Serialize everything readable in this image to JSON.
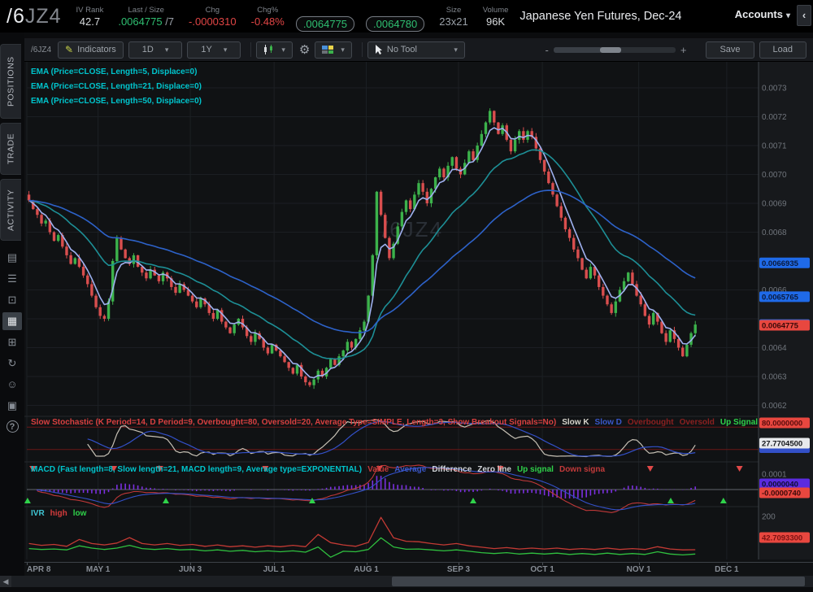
{
  "header": {
    "symbol_primary": "/6",
    "symbol_secondary": "JZ4",
    "iv_rank": {
      "label": "IV Rank",
      "value": "42.7"
    },
    "last_size": {
      "label": "Last / Size",
      "value": ".0064775",
      "size": " /7"
    },
    "chg": {
      "label": "Chg",
      "value": "-.0000310"
    },
    "chg_pct": {
      "label": "Chg%",
      "value": "-0.48%"
    },
    "bid": {
      "label": "Bid (Sell)",
      "value": ".0064775"
    },
    "ask": {
      "label": "Ask (Buy)",
      "value": ".0064780"
    },
    "size": {
      "label": "Size",
      "value": "23x21"
    },
    "volume": {
      "label": "Volume",
      "value": "96K"
    },
    "instrument": "Japanese Yen Futures, Dec-24",
    "accounts_label": "Accounts",
    "collapse_icon": "‹"
  },
  "sidebar": {
    "tabs": [
      "POSITIONS",
      "TRADE",
      "ACTIVITY"
    ],
    "icons": [
      {
        "name": "news-icon",
        "glyph": "▤"
      },
      {
        "name": "watchlist-icon",
        "glyph": "☰"
      },
      {
        "name": "monitor-icon",
        "glyph": "⊡"
      },
      {
        "name": "chart-icon",
        "glyph": "▦",
        "active": true
      },
      {
        "name": "apps-grid-icon",
        "glyph": "⊞"
      },
      {
        "name": "history-icon",
        "glyph": "↻"
      },
      {
        "name": "community-icon",
        "glyph": "☺"
      },
      {
        "name": "widget-icon",
        "glyph": "▣"
      }
    ],
    "help_glyph": "?"
  },
  "toolbar": {
    "symbol": "/6JZ4",
    "indicators": "Indicators",
    "period": "1D",
    "range": "1Y",
    "tool": "No Tool",
    "save": "Save",
    "load": "Load",
    "zoom_minus": "-",
    "zoom_plus": "+"
  },
  "chart_data": {
    "type": "candlestick-multi-panel",
    "watermark": "/6JZ4",
    "scale": 1e-05,
    "total_days": 175,
    "closes_e5": [
      691,
      688,
      686,
      683,
      684,
      680,
      677,
      679,
      675,
      672,
      669,
      671,
      668,
      665,
      662,
      658,
      654,
      651,
      650,
      656,
      670,
      678,
      674,
      671,
      669,
      672,
      668,
      666,
      664,
      667,
      665,
      663,
      666,
      664,
      661,
      659,
      662,
      660,
      658,
      656,
      654,
      657,
      655,
      652,
      650,
      653,
      649,
      647,
      645,
      648,
      650,
      647,
      644,
      642,
      645,
      643,
      640,
      638,
      641,
      639,
      637,
      635,
      633,
      631,
      634,
      630,
      628,
      627,
      629,
      632,
      630,
      633,
      636,
      634,
      637,
      639,
      642,
      640,
      643,
      646,
      649,
      658,
      672,
      694,
      686,
      678,
      671,
      676,
      682,
      687,
      691,
      688,
      693,
      697,
      694,
      690,
      695,
      699,
      702,
      699,
      703,
      706,
      702,
      700,
      704,
      708,
      705,
      710,
      714,
      718,
      722,
      718,
      714,
      717,
      712,
      708,
      712,
      715,
      712,
      715,
      713,
      709,
      705,
      701,
      697,
      693,
      689,
      685,
      681,
      678,
      674,
      671,
      667,
      664,
      668,
      665,
      661,
      658,
      655,
      652,
      656,
      660,
      663,
      666,
      662,
      658,
      655,
      651,
      648,
      652,
      649,
      645,
      642,
      646,
      643,
      640,
      637,
      641,
      645,
      648
    ],
    "x_axis": {
      "labels": [
        {
          "text": "APR 8",
          "day": 0
        },
        {
          "text": "MAY 1",
          "day": 17
        },
        {
          "text": "JUN 3",
          "day": 39
        },
        {
          "text": "JUL 1",
          "day": 59
        },
        {
          "text": "AUG 1",
          "day": 81
        },
        {
          "text": "SEP 3",
          "day": 103
        },
        {
          "text": "OCT 1",
          "day": 123
        },
        {
          "text": "NOV 1",
          "day": 146
        },
        {
          "text": "DEC 1",
          "day": 167
        }
      ]
    },
    "y_axis": {
      "ticks": [
        0.0073,
        0.0072,
        0.0071,
        0.007,
        0.0069,
        0.0068,
        0.0067,
        0.0066,
        0.0065,
        0.0064,
        0.0063,
        0.0062
      ],
      "hidden_ticks": [
        0.0067,
        0.0065
      ],
      "bubbles": [
        {
          "text": "0.0066935",
          "value": 0.0066935,
          "bg": "#1f6ae8",
          "fg": "#0a1a3c"
        },
        {
          "text": "0.0065765",
          "value": 0.0065765,
          "bg": "#1f6ae8",
          "fg": "#0a1a3c"
        },
        {
          "text": "0.0064780",
          "value": 0.00648,
          "bg": "#1f6ae8",
          "fg": "#0a1a3c"
        },
        {
          "text": "0.0064775",
          "value": 0.0064775,
          "bg": "#e8473f",
          "fg": "#3a0909"
        }
      ]
    },
    "emas": {
      "labels": [
        "EMA (Price=CLOSE, Length=5, Displace=0)",
        "EMA (Price=CLOSE, Length=21, Displace=0)",
        "EMA (Price=CLOSE, Length=50, Displace=0)"
      ],
      "lengths": [
        5,
        21,
        50
      ],
      "colors": [
        "#9fb1ef",
        "#1d8f96",
        "#2d62c9"
      ]
    },
    "stochastic": {
      "label": "Slow Stochastic (K Period=14, D Period=9, Overbought=80, Oversold=20, Average Type=SIMPLE, Length=3, Show Breakout Signals=No)",
      "label_color": "#d94040",
      "legend": [
        {
          "text": "Slow K",
          "color": "#d8d5cc"
        },
        {
          "text": "Slow D",
          "color": "#3a57c9"
        },
        {
          "text": "Overbought",
          "color": "#8b2020"
        },
        {
          "text": "Oversold",
          "color": "#8b2020"
        },
        {
          "text": "Up Signal",
          "color": "#2fd24a"
        }
      ],
      "overbought": 80,
      "oversold": 20,
      "k_period": 14,
      "d_period": 9,
      "smooth": 3,
      "bubble_ob": {
        "text": "80.0000000",
        "bg": "#e8473f",
        "fg": "#5a0c0c"
      },
      "bubble_k": {
        "text": "27.7704500",
        "bg": "#e8eaec",
        "fg": "#15181c"
      }
    },
    "macd": {
      "label": "MACD (Fast length=8, Slow length=21, MACD length=9, Average type=EXPONENTIAL)",
      "label_color": "#00c5cd",
      "legend": [
        {
          "text": "Value",
          "color": "#c23a3a"
        },
        {
          "text": "Average",
          "color": "#3a57c9"
        },
        {
          "text": "Difference",
          "color": "#cfd2d6"
        },
        {
          "text": "Zero line",
          "color": "#cfd2d6"
        },
        {
          "text": "Up signal",
          "color": "#2fd24a"
        },
        {
          "text": "Down signa",
          "color": "#c23a3a"
        }
      ],
      "fast": 8,
      "slow": 21,
      "signal": 9,
      "tick_label": "0.0001",
      "bubble_avg": {
        "text": "0.0000040",
        "bg": "#5b2be0",
        "fg": "#0d0d30"
      },
      "bubble_val": {
        "text": "-0.0000740",
        "bg": "#e8473f",
        "fg": "#3a0909"
      },
      "red_arrows_frac": [
        0.008,
        0.119,
        0.182,
        0.326,
        0.482,
        0.647,
        0.852,
        0.974
      ],
      "green_arrows_frac": [
        0.001,
        0.19,
        0.39,
        0.61,
        0.88,
        0.952
      ]
    },
    "ivr": {
      "legend": [
        {
          "text": "IVR",
          "color": "#3fc6d4"
        },
        {
          "text": "high",
          "color": "#d43c3c"
        },
        {
          "text": "low",
          "color": "#2fd24a"
        }
      ],
      "step_days": 3,
      "high": [
        70,
        62,
        66,
        58,
        88,
        70,
        64,
        72,
        96,
        70,
        64,
        70,
        62,
        66,
        58,
        64,
        56,
        60,
        54,
        60,
        56,
        62,
        56,
        110,
        74,
        64,
        58,
        75,
        185,
        95,
        80,
        78,
        70,
        64,
        70,
        60,
        54,
        48,
        52,
        46,
        50,
        46,
        50,
        44,
        48,
        44,
        50,
        44,
        48,
        44,
        56,
        46,
        42,
        43
      ],
      "low": [
        48,
        44,
        46,
        42,
        60,
        50,
        44,
        50,
        62,
        48,
        44,
        48,
        42,
        44,
        38,
        42,
        36,
        40,
        34,
        38,
        34,
        38,
        32,
        55,
        10,
        36,
        34,
        44,
        95,
        55,
        45,
        46,
        42,
        38,
        42,
        36,
        30,
        26,
        30,
        24,
        28,
        24,
        28,
        22,
        26,
        22,
        28,
        22,
        26,
        22,
        34,
        24,
        20,
        24
      ],
      "tick_label": "200",
      "bubble": {
        "text": "42.7093300",
        "bg": "#e8473f",
        "fg": "#7a1212"
      }
    },
    "colors": {
      "up": "#3cb24b",
      "down": "#d94e4e",
      "grid": "#1b1e23",
      "axis_bg": "#17191c",
      "axis_text": "#70757c",
      "watermark": "#2a2f36",
      "macd_hist": "#7b2fe0",
      "stoch_k": "#c6c0b4",
      "stoch_d": "#3350c8",
      "ob_line": "#6b1616",
      "zero_line": "#7e848b",
      "ivr_high": "#c33a34",
      "ivr_low": "#2fbf3f"
    }
  }
}
